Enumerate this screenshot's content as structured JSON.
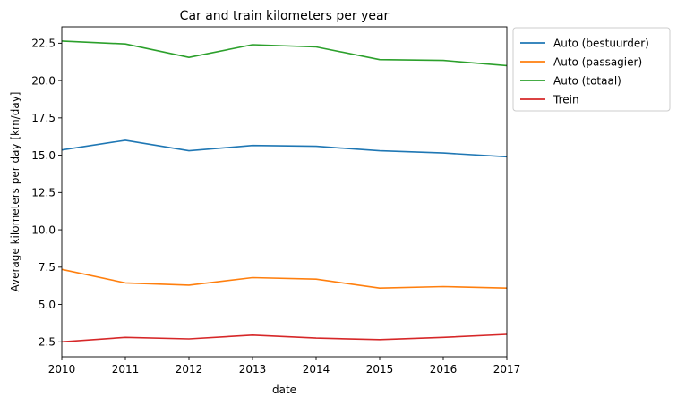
{
  "chart_data": {
    "type": "line",
    "title": "Car and train kilometers per year",
    "xlabel": "date",
    "ylabel": "Average kilometers per day [km/day]",
    "x": [
      2010,
      2011,
      2012,
      2013,
      2014,
      2015,
      2016,
      2017
    ],
    "xlim": [
      2010,
      2017
    ],
    "ylim": [
      1.5,
      23.6
    ],
    "xticks": [
      "2010",
      "2011",
      "2012",
      "2013",
      "2014",
      "2015",
      "2016",
      "2017"
    ],
    "yticks": [
      "2.5",
      "5.0",
      "7.5",
      "10.0",
      "12.5",
      "15.0",
      "17.5",
      "20.0",
      "22.5"
    ],
    "legend_position": "outside-top-right",
    "grid": false,
    "series": [
      {
        "name": "Auto (bestuurder)",
        "color": "#1f77b4",
        "values": [
          15.35,
          16.0,
          15.3,
          15.65,
          15.6,
          15.3,
          15.15,
          14.9
        ]
      },
      {
        "name": "Auto (passagier)",
        "color": "#ff7f0e",
        "values": [
          7.35,
          6.45,
          6.3,
          6.8,
          6.7,
          6.1,
          6.2,
          6.1
        ]
      },
      {
        "name": "Auto (totaal)",
        "color": "#2ca02c",
        "values": [
          22.65,
          22.45,
          21.55,
          22.4,
          22.25,
          21.4,
          21.35,
          21.0
        ]
      },
      {
        "name": "Trein",
        "color": "#d62728",
        "values": [
          2.5,
          2.8,
          2.7,
          2.95,
          2.75,
          2.65,
          2.8,
          3.0
        ]
      }
    ]
  }
}
